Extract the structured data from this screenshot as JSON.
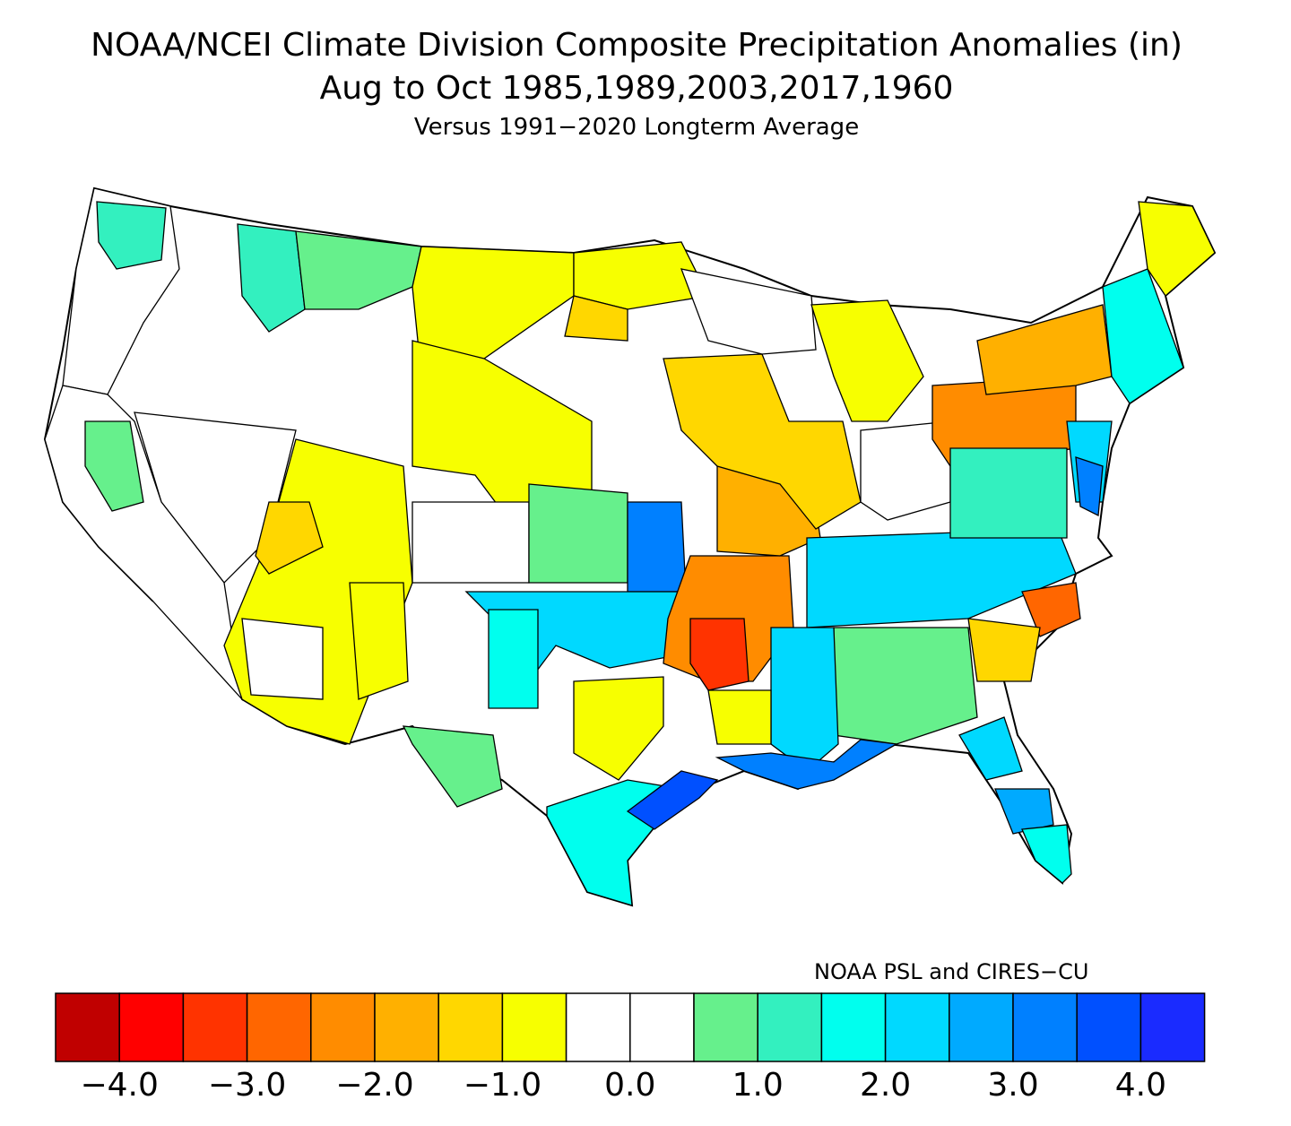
{
  "title": "NOAA/NCEI Climate Division Composite Precipitation Anomalies (in)",
  "subtitle": "Aug to Oct   1985,1989,2003,2017,1960",
  "subsubtitle": "Versus 1991−2020 Longterm Average",
  "credit": "NOAA PSL and CIRES−CU",
  "colorbar": {
    "colors": [
      "#c00000",
      "#ff0000",
      "#ff3300",
      "#ff6600",
      "#ff8c00",
      "#ffb000",
      "#ffd700",
      "#f7ff00",
      "#ffffff",
      "#ffffff",
      "#66f08c",
      "#33f0bf",
      "#00ffee",
      "#00d9ff",
      "#00aaff",
      "#0080ff",
      "#0050ff",
      "#1a2bff"
    ],
    "tick_labels": [
      "−4.0",
      "−3.0",
      "−2.0",
      "−1.0",
      "0.0",
      "1.0",
      "2.0",
      "3.0",
      "4.0"
    ]
  },
  "regions": [
    {
      "name": "pacific-northwest-coast",
      "color": "#ffffff"
    },
    {
      "name": "washington-cascades",
      "color": "#33f0bf"
    },
    {
      "name": "idaho-panhandle",
      "color": "#33f0bf"
    },
    {
      "name": "montana-west",
      "color": "#66f08c"
    },
    {
      "name": "montana-east",
      "color": "#f7ff00"
    },
    {
      "name": "dakotas-north",
      "color": "#f7ff00"
    },
    {
      "name": "dakotas-south",
      "color": "#ffd700"
    },
    {
      "name": "wyoming-colorado",
      "color": "#f7ff00"
    },
    {
      "name": "nevada-great-basin",
      "color": "#ffffff"
    },
    {
      "name": "california-coast",
      "color": "#ffffff"
    },
    {
      "name": "california-sierra",
      "color": "#66f08c"
    },
    {
      "name": "utah-arizona",
      "color": "#f7ff00"
    },
    {
      "name": "utah-southwest",
      "color": "#ffd700"
    },
    {
      "name": "arizona-southwest",
      "color": "#ffffff"
    },
    {
      "name": "new-mexico-east",
      "color": "#f7ff00"
    },
    {
      "name": "kansas-west",
      "color": "#ffffff"
    },
    {
      "name": "kansas-central",
      "color": "#66f08c"
    },
    {
      "name": "kansas-east",
      "color": "#0080ff"
    },
    {
      "name": "oklahoma",
      "color": "#00d9ff"
    },
    {
      "name": "texas-panhandle",
      "color": "#00ffee"
    },
    {
      "name": "west-texas",
      "color": "#66f08c"
    },
    {
      "name": "texas-central",
      "color": "#f7ff00"
    },
    {
      "name": "texas-south",
      "color": "#00ffee"
    },
    {
      "name": "texas-gulf-coast",
      "color": "#0050ff"
    },
    {
      "name": "arkansas",
      "color": "#ff8c00"
    },
    {
      "name": "arkansas-core",
      "color": "#ff3300"
    },
    {
      "name": "missouri",
      "color": "#ffb000"
    },
    {
      "name": "iowa-illinois",
      "color": "#ffd700"
    },
    {
      "name": "wisconsin-minnesota",
      "color": "#ffffff"
    },
    {
      "name": "michigan",
      "color": "#f7ff00"
    },
    {
      "name": "ohio-valley",
      "color": "#ffffff"
    },
    {
      "name": "pennsylvania",
      "color": "#ff8c00"
    },
    {
      "name": "new-york",
      "color": "#ffb000"
    },
    {
      "name": "new-england",
      "color": "#00ffee"
    },
    {
      "name": "maine",
      "color": "#f7ff00"
    },
    {
      "name": "mid-atlantic",
      "color": "#00d9ff"
    },
    {
      "name": "delmarva",
      "color": "#0080ff"
    },
    {
      "name": "kentucky-tennessee",
      "color": "#00d9ff"
    },
    {
      "name": "virginias",
      "color": "#33f0bf"
    },
    {
      "name": "north-carolina-east",
      "color": "#ff6600"
    },
    {
      "name": "carolinas-west",
      "color": "#ffd700"
    },
    {
      "name": "georgia-alabama",
      "color": "#66f08c"
    },
    {
      "name": "mississippi-louisiana",
      "color": "#00d9ff"
    },
    {
      "name": "louisiana-north",
      "color": "#f7ff00"
    },
    {
      "name": "gulf-coast",
      "color": "#0080ff"
    },
    {
      "name": "florida-north",
      "color": "#00d9ff"
    },
    {
      "name": "florida-central",
      "color": "#00aaff"
    },
    {
      "name": "florida-south",
      "color": "#00ffee"
    }
  ]
}
